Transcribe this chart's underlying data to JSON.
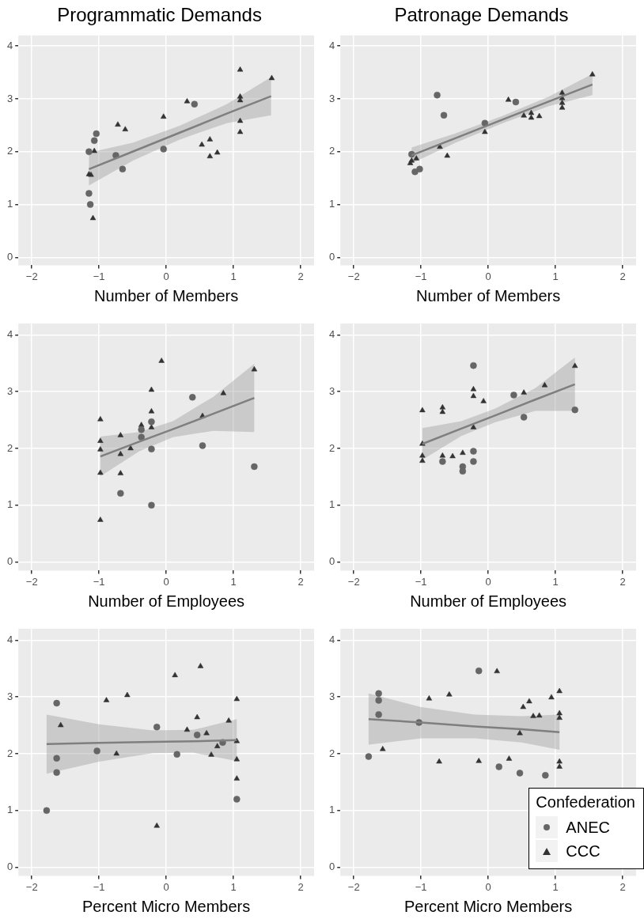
{
  "chart_data": [
    {
      "type": "scatter",
      "title": "Programmatic Demands",
      "xlabel": "Number of Members",
      "xlim": [
        -2.2,
        2.2
      ],
      "ylim": [
        -0.15,
        4.2
      ],
      "xticks": [
        -2,
        -1,
        0,
        1,
        2
      ],
      "yticks": [
        0,
        1,
        2,
        3,
        4
      ],
      "grid": true,
      "legend": false,
      "series": [
        {
          "color": "#666666",
          "marker": "circle",
          "x": [
            -1.15,
            -1.04,
            -1.07,
            -0.75,
            -0.65,
            -1.15,
            -1.13,
            -0.04,
            0.42
          ],
          "values": [
            2.0,
            2.34,
            2.21,
            1.93,
            1.67,
            1.21,
            1.0,
            2.05,
            2.9
          ]
        },
        {
          "color": "#333333",
          "marker": "triangle",
          "x": [
            -1.07,
            -1.15,
            -1.12,
            -1.09,
            -0.72,
            -0.61,
            -0.04,
            0.31,
            0.53,
            0.65,
            0.65,
            0.76,
            1.1,
            1.1,
            1.1,
            1.1,
            1.1,
            1.57
          ],
          "values": [
            2.01,
            1.57,
            1.56,
            0.74,
            2.51,
            2.42,
            2.66,
            2.95,
            2.13,
            2.23,
            1.91,
            1.98,
            3.55,
            3.04,
            2.97,
            2.58,
            2.37,
            3.39
          ]
        },
        {
          "type": "line",
          "color": "#7f7f7f",
          "marker": "none",
          "x": [
            -1.15,
            -0.5,
            0.2,
            0.9,
            1.56
          ],
          "values": [
            1.67,
            2.0,
            2.36,
            2.72,
            3.05
          ],
          "lower": [
            1.36,
            1.83,
            2.23,
            2.54,
            2.69
          ],
          "upper": [
            1.98,
            2.17,
            2.49,
            2.9,
            3.41
          ]
        }
      ]
    },
    {
      "type": "scatter",
      "title": "Patronage Demands",
      "xlabel": "Number of Members",
      "xlim": [
        -2.2,
        2.2
      ],
      "ylim": [
        -0.15,
        4.2
      ],
      "xticks": [
        -2,
        -1,
        0,
        1,
        2
      ],
      "yticks": [
        0,
        1,
        2,
        3,
        4
      ],
      "grid": true,
      "legend": false,
      "series": [
        {
          "color": "#666666",
          "marker": "circle",
          "x": [
            -1.14,
            -1.09,
            -1.02,
            -0.76,
            -0.66,
            -0.05,
            0.41
          ],
          "values": [
            1.95,
            1.62,
            1.67,
            3.07,
            2.69,
            2.54,
            2.94
          ]
        },
        {
          "color": "#333333",
          "marker": "triangle",
          "x": [
            -1.16,
            -1.14,
            -1.07,
            -0.72,
            -0.61,
            -0.05,
            0.3,
            0.53,
            0.64,
            0.64,
            0.76,
            1.1,
            1.1,
            1.1,
            1.1,
            1.55
          ],
          "values": [
            1.78,
            1.83,
            1.87,
            2.09,
            1.92,
            2.37,
            2.98,
            2.68,
            2.73,
            2.64,
            2.67,
            3.11,
            3.01,
            2.92,
            2.83,
            3.46
          ]
        },
        {
          "type": "line",
          "color": "#7f7f7f",
          "marker": "none",
          "x": [
            -1.14,
            -0.5,
            0.2,
            0.9,
            1.55
          ],
          "values": [
            1.93,
            2.25,
            2.6,
            2.95,
            3.27
          ],
          "lower": [
            1.78,
            2.16,
            2.53,
            2.86,
            3.07
          ],
          "upper": [
            2.08,
            2.34,
            2.67,
            3.04,
            3.47
          ]
        }
      ]
    },
    {
      "type": "scatter",
      "xlabel": "Number of Employees",
      "xlim": [
        -2.2,
        2.2
      ],
      "ylim": [
        -0.15,
        4.2
      ],
      "xticks": [
        -2,
        -1,
        0,
        1,
        2
      ],
      "yticks": [
        0,
        1,
        2,
        3,
        4
      ],
      "grid": true,
      "legend": false,
      "series": [
        {
          "color": "#666666",
          "marker": "circle",
          "x": [
            -0.68,
            -0.22,
            -0.22,
            -0.22,
            -0.37,
            -0.37,
            0.39,
            0.54,
            1.31
          ],
          "values": [
            1.21,
            1.0,
            1.99,
            2.47,
            2.33,
            2.2,
            2.9,
            2.05,
            1.68
          ]
        },
        {
          "color": "#333333",
          "marker": "triangle",
          "x": [
            -0.98,
            -0.98,
            -0.98,
            -0.98,
            -0.98,
            -0.68,
            -0.68,
            -0.68,
            -0.53,
            -0.37,
            -0.22,
            -0.22,
            -0.22,
            -0.07,
            0.54,
            0.85,
            1.31
          ],
          "values": [
            2.51,
            2.13,
            1.98,
            1.57,
            0.74,
            2.23,
            1.9,
            1.56,
            2.0,
            2.41,
            2.37,
            2.65,
            3.03,
            3.54,
            2.57,
            2.97,
            3.39
          ]
        },
        {
          "type": "line",
          "color": "#7f7f7f",
          "marker": "none",
          "x": [
            -0.98,
            -0.4,
            0.1,
            0.7,
            1.31
          ],
          "values": [
            1.86,
            2.12,
            2.34,
            2.61,
            2.89
          ],
          "lower": [
            1.51,
            1.95,
            2.2,
            2.31,
            2.29
          ],
          "upper": [
            2.21,
            2.29,
            2.48,
            2.91,
            3.49
          ]
        }
      ]
    },
    {
      "type": "scatter",
      "xlabel": "Number of Employees",
      "xlim": [
        -2.2,
        2.2
      ],
      "ylim": [
        -0.15,
        4.2
      ],
      "xticks": [
        -2,
        -1,
        0,
        1,
        2
      ],
      "yticks": [
        0,
        1,
        2,
        3,
        4
      ],
      "grid": true,
      "legend": false,
      "series": [
        {
          "color": "#666666",
          "marker": "circle",
          "x": [
            -0.22,
            -0.22,
            -0.22,
            -0.38,
            -0.38,
            -0.68,
            0.38,
            0.53,
            1.29
          ],
          "values": [
            3.46,
            1.95,
            1.77,
            1.68,
            1.6,
            1.77,
            2.94,
            2.55,
            2.68
          ]
        },
        {
          "color": "#333333",
          "marker": "triangle",
          "x": [
            -0.98,
            -0.98,
            -0.98,
            -0.98,
            -0.68,
            -0.68,
            -0.68,
            -0.53,
            -0.38,
            -0.22,
            -0.22,
            -0.22,
            -0.07,
            0.53,
            0.84,
            1.29
          ],
          "values": [
            2.67,
            2.08,
            1.87,
            1.78,
            2.72,
            2.64,
            1.87,
            1.86,
            1.92,
            3.04,
            2.92,
            2.37,
            2.83,
            2.98,
            3.11,
            3.45
          ]
        },
        {
          "type": "line",
          "color": "#7f7f7f",
          "marker": "none",
          "x": [
            -0.98,
            -0.4,
            0.1,
            0.7,
            1.29
          ],
          "values": [
            2.08,
            2.35,
            2.58,
            2.86,
            3.13
          ],
          "lower": [
            1.8,
            2.22,
            2.46,
            2.66,
            2.66
          ],
          "upper": [
            2.36,
            2.48,
            2.7,
            3.06,
            3.6
          ]
        }
      ]
    },
    {
      "type": "scatter",
      "xlabel": "Percent Micro Members",
      "xlim": [
        -2.2,
        2.2
      ],
      "ylim": [
        -0.15,
        4.2
      ],
      "xticks": [
        -2,
        -1,
        0,
        1,
        2
      ],
      "yticks": [
        0,
        1,
        2,
        3,
        4
      ],
      "grid": true,
      "legend": false,
      "series": [
        {
          "color": "#666666",
          "marker": "circle",
          "x": [
            -1.78,
            -1.63,
            -1.63,
            -1.63,
            -1.03,
            -0.14,
            0.16,
            0.46,
            0.84,
            1.05
          ],
          "values": [
            1.0,
            2.89,
            1.92,
            1.67,
            2.05,
            2.47,
            1.99,
            2.33,
            2.2,
            1.2
          ]
        },
        {
          "color": "#333333",
          "marker": "triangle",
          "x": [
            -1.57,
            -0.89,
            -0.58,
            -0.74,
            -0.14,
            0.13,
            0.51,
            0.31,
            0.46,
            0.6,
            0.67,
            0.76,
            0.93,
            1.05,
            1.05,
            1.05,
            1.05
          ],
          "values": [
            2.5,
            2.94,
            3.03,
            2.0,
            0.73,
            3.38,
            3.54,
            2.42,
            2.64,
            2.36,
            1.98,
            2.13,
            2.58,
            2.96,
            2.22,
            1.9,
            1.56
          ]
        },
        {
          "type": "line",
          "color": "#7f7f7f",
          "marker": "none",
          "x": [
            -1.78,
            -1.0,
            -0.2,
            0.4,
            1.05
          ],
          "values": [
            2.17,
            2.19,
            2.21,
            2.22,
            2.24
          ],
          "lower": [
            1.65,
            1.86,
            2.01,
            2.02,
            1.87
          ],
          "upper": [
            2.69,
            2.52,
            2.41,
            2.42,
            2.61
          ]
        }
      ]
    },
    {
      "type": "scatter",
      "xlabel": "Percent Micro Members",
      "xlim": [
        -2.2,
        2.2
      ],
      "ylim": [
        -0.15,
        4.2
      ],
      "xticks": [
        -2,
        -1,
        0,
        1,
        2
      ],
      "yticks": [
        0,
        1,
        2,
        3,
        4
      ],
      "grid": true,
      "legend": "bottom right",
      "legend_title": "Confederation",
      "series": [
        {
          "name": "ANEC",
          "color": "#666666",
          "marker": "circle",
          "x": [
            -1.78,
            -1.63,
            -1.63,
            -1.63,
            -1.03,
            -0.14,
            0.16,
            0.47,
            0.85
          ],
          "values": [
            1.95,
            3.06,
            2.94,
            2.69,
            2.55,
            3.46,
            1.77,
            1.66,
            1.62
          ]
        },
        {
          "name": "CCC",
          "color": "#333333",
          "marker": "triangle",
          "x": [
            -1.57,
            -0.88,
            -0.58,
            -0.73,
            -0.14,
            0.13,
            0.31,
            0.47,
            0.52,
            0.61,
            0.67,
            0.76,
            0.94,
            1.06,
            1.06,
            1.06,
            1.06,
            1.06
          ],
          "values": [
            2.08,
            2.97,
            3.04,
            1.86,
            1.87,
            3.45,
            1.91,
            2.36,
            2.82,
            2.92,
            2.66,
            2.67,
            2.99,
            3.1,
            2.71,
            2.63,
            1.86,
            1.77
          ]
        },
        {
          "type": "line",
          "color": "#7f7f7f",
          "marker": "none",
          "x": [
            -1.78,
            -1.0,
            -0.2,
            0.5,
            1.06
          ],
          "values": [
            2.61,
            2.55,
            2.48,
            2.43,
            2.38
          ],
          "lower": [
            2.16,
            2.27,
            2.27,
            2.2,
            2.07
          ],
          "upper": [
            3.06,
            2.82,
            2.69,
            2.66,
            2.69
          ]
        }
      ]
    }
  ]
}
